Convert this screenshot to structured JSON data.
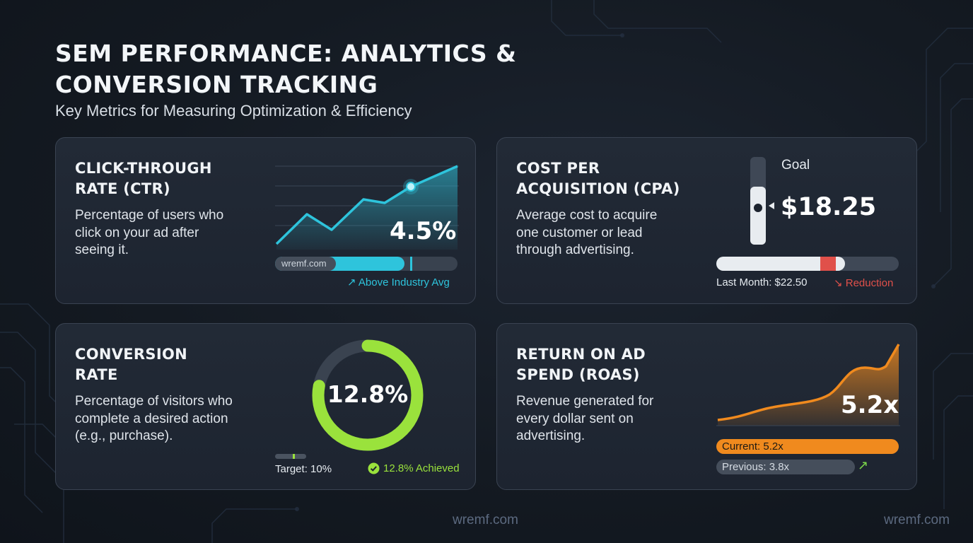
{
  "header": {
    "title_line1": "SEM PERFORMANCE: ANALYTICS &",
    "title_line2": "CONVERSION TRACKING",
    "subtitle": "Key Metrics for Measuring Optimization & Efficiency"
  },
  "ctr": {
    "title_line1": "CLICK-THROUGH",
    "title_line2": "RATE (CTR)",
    "desc_line1": "Percentage of users who",
    "desc_line2": "click on your ad after",
    "desc_line3": "seeing it.",
    "value": "4.5%",
    "bar_text": "wremf.com",
    "bar_fill_fraction": 0.71,
    "trend_label": "Above Industry Avg",
    "trend_icon": "arrow-up-right-icon"
  },
  "cpa": {
    "title_line1": "COST PER",
    "title_line2": "ACQUISITION (CPA)",
    "desc_line1": "Average cost to acquire",
    "desc_line2": "one customer or lead",
    "desc_line3": "through advertising.",
    "goal_label": "Goal",
    "value": "$18.25",
    "last_month_label": "Last Month: $22.50",
    "trend_label": "Reduction",
    "trend_icon": "arrow-down-right-icon"
  },
  "conversion": {
    "title_line1": "CONVERSION",
    "title_line2": "RATE",
    "desc_line1": "Percentage of visitors who",
    "desc_line2": "complete a desired action",
    "desc_line3": "(e.g., purchase).",
    "value": "12.8%",
    "ring_fraction": 0.78,
    "target_label": "Target: 10%",
    "achieved_label": "12.8% Achieved",
    "achieved_icon": "check-circle-icon"
  },
  "roas": {
    "title_line1": "RETURN ON AD",
    "title_line2": "SPEND (ROAS)",
    "desc_line1": "Revenue generated for",
    "desc_line2": "every dollar sent on",
    "desc_line3": "advertising.",
    "value": "5.2x",
    "current_label": "Current: 5.2x",
    "previous_label": "Previous: 3.8x",
    "trend_icon": "arrow-up-right-icon"
  },
  "footer": {
    "watermark_center": "wremf.com",
    "watermark_right": "wremf.com"
  },
  "colors": {
    "teal": "#2ec4dc",
    "red": "#e0504a",
    "green": "#9ae23c",
    "orange": "#f08a1e"
  }
}
